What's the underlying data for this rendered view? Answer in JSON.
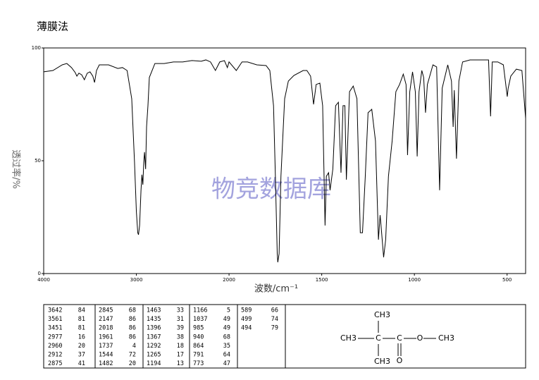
{
  "chart_data": {
    "type": "line",
    "title": "薄膜法",
    "xlabel": "波数/cm⁻¹",
    "ylabel": "透过率/%",
    "watermark": "物竞数据库",
    "xlim": [
      4000,
      400
    ],
    "ylim": [
      0,
      100
    ],
    "xticks": [
      4000,
      3000,
      2000,
      1500,
      1000,
      500
    ],
    "yticks": [
      0,
      50,
      100
    ],
    "xbreak": 2000,
    "color": "#000000",
    "x": [
      4000,
      3900,
      3800,
      3750,
      3700,
      3660,
      3642,
      3620,
      3590,
      3561,
      3530,
      3500,
      3470,
      3451,
      3430,
      3400,
      3300,
      3200,
      3150,
      3100,
      3050,
      3020,
      3000,
      2985,
      2977,
      2965,
      2950,
      2940,
      2930,
      2920,
      2912,
      2900,
      2890,
      2875,
      2860,
      2800,
      2700,
      2600,
      2500,
      2400,
      2300,
      2250,
      2200,
      2147,
      2100,
      2050,
      2018,
      2000,
      1961,
      1930,
      1900,
      1850,
      1800,
      1780,
      1760,
      1750,
      1740,
      1737,
      1730,
      1720,
      1700,
      1680,
      1650,
      1600,
      1580,
      1560,
      1544,
      1530,
      1510,
      1495,
      1482,
      1475,
      1463,
      1455,
      1440,
      1425,
      1410,
      1396,
      1385,
      1375,
      1367,
      1350,
      1330,
      1310,
      1292,
      1280,
      1265,
      1250,
      1230,
      1210,
      1194,
      1185,
      1180,
      1166,
      1155,
      1140,
      1120,
      1100,
      1080,
      1060,
      1045,
      1037,
      1025,
      1010,
      995,
      985,
      975,
      960,
      950,
      940,
      930,
      900,
      880,
      864,
      850,
      820,
      800,
      791,
      785,
      773,
      760,
      740,
      700,
      600,
      589,
      580,
      550,
      520,
      499,
      494,
      480,
      450,
      420,
      400
    ],
    "values": [
      89.4,
      90,
      92.5,
      93.1,
      91.3,
      89.1,
      87.5,
      88.8,
      88.1,
      85.9,
      88.8,
      89.4,
      87.5,
      84.7,
      90,
      92.5,
      92.5,
      90.9,
      91.3,
      90,
      77.5,
      49.4,
      27.5,
      18.1,
      17.2,
      21.3,
      36.9,
      43.8,
      39.4,
      49.4,
      53.8,
      46.3,
      65,
      74.4,
      86.9,
      93.1,
      93.1,
      93.8,
      93.8,
      94.4,
      94.1,
      94.7,
      93.8,
      90,
      93.8,
      94.4,
      91.3,
      93.8,
      90,
      93.8,
      93.8,
      92.5,
      92.2,
      90,
      74.4,
      43.1,
      8.8,
      5,
      8.8,
      43.1,
      77.5,
      85.3,
      87.8,
      90,
      90,
      87.5,
      75,
      83.8,
      84.4,
      74.4,
      21.3,
      43.1,
      44.7,
      36.9,
      46.3,
      74.4,
      75.9,
      44.7,
      74.4,
      74.4,
      41.6,
      80.6,
      83.1,
      77.5,
      18.1,
      18.1,
      43.1,
      71.3,
      72.8,
      58.8,
      15,
      25.9,
      21.3,
      7.2,
      15,
      43.1,
      58.8,
      80.6,
      83.8,
      88.4,
      83.8,
      52.5,
      80.6,
      89.4,
      80.6,
      51.9,
      80.6,
      90,
      86.9,
      71.3,
      83.8,
      92.5,
      91.6,
      36.9,
      82.2,
      92.5,
      85.3,
      65,
      81.3,
      50.9,
      85.3,
      93.8,
      94.7,
      94.7,
      69.7,
      93.8,
      93.8,
      92.5,
      78.4,
      82.2,
      87.5,
      90.6,
      90,
      68.8
    ]
  },
  "peaks": [
    [
      [
        "3642",
        "84"
      ],
      [
        "3561",
        "81"
      ],
      [
        "3451",
        "81"
      ],
      [
        "2977",
        "16"
      ],
      [
        "2960",
        "20"
      ],
      [
        "2912",
        "37"
      ],
      [
        "2875",
        "41"
      ]
    ],
    [
      [
        "2845",
        "68"
      ],
      [
        "2147",
        "86"
      ],
      [
        "2018",
        "86"
      ],
      [
        "1961",
        "86"
      ],
      [
        "1737",
        "4"
      ],
      [
        "1544",
        "72"
      ],
      [
        "1482",
        "20"
      ]
    ],
    [
      [
        "1463",
        "33"
      ],
      [
        "1435",
        "31"
      ],
      [
        "1396",
        "39"
      ],
      [
        "1367",
        "38"
      ],
      [
        "1292",
        "18"
      ],
      [
        "1265",
        "17"
      ],
      [
        "1194",
        "13"
      ]
    ],
    [
      [
        "1166",
        "5"
      ],
      [
        "1037",
        "49"
      ],
      [
        "985",
        "49"
      ],
      [
        "940",
        "68"
      ],
      [
        "864",
        "35"
      ],
      [
        "791",
        "64"
      ],
      [
        "773",
        "47"
      ]
    ],
    [
      [
        "589",
        "66"
      ],
      [
        "499",
        "74"
      ],
      [
        "494",
        "79"
      ]
    ]
  ],
  "structure": {
    "top": "CH3",
    "left": "CH3",
    "c1": "C",
    "c2": "C",
    "o": "O",
    "right": "CH3",
    "bottom": "CH3",
    "carbonyl": "O"
  }
}
